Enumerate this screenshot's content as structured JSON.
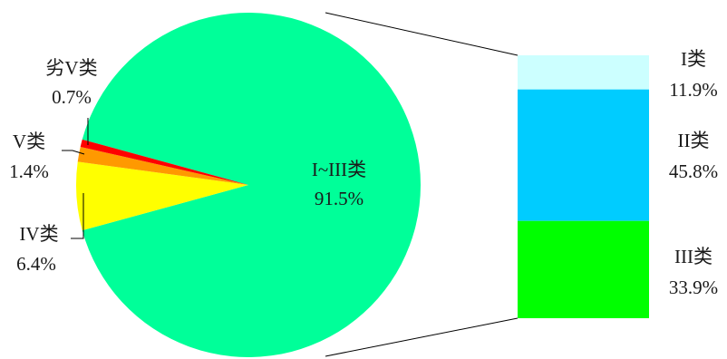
{
  "chart_data": {
    "type": "pie",
    "title": "",
    "main_pie": {
      "slices": [
        {
          "name": "I~III类",
          "value": 91.5,
          "label": "91.5%",
          "color": "#00FF99"
        },
        {
          "name": "IV类",
          "value": 6.4,
          "label": "6.4%",
          "color": "#FFFF00"
        },
        {
          "name": "V类",
          "value": 1.4,
          "label": "1.4%",
          "color": "#FF9900"
        },
        {
          "name": "劣V类",
          "value": 0.7,
          "label": "0.7%",
          "color": "#FF0000"
        }
      ]
    },
    "breakdown_bar": {
      "parent": "I~III类",
      "segments": [
        {
          "name": "I类",
          "value": 11.9,
          "label": "11.9%",
          "color": "#CCFFFF"
        },
        {
          "name": "II类",
          "value": 45.8,
          "label": "45.8%",
          "color": "#00CCFF"
        },
        {
          "name": "III类",
          "value": 33.9,
          "label": "33.9%",
          "color": "#00FF00"
        }
      ]
    }
  }
}
